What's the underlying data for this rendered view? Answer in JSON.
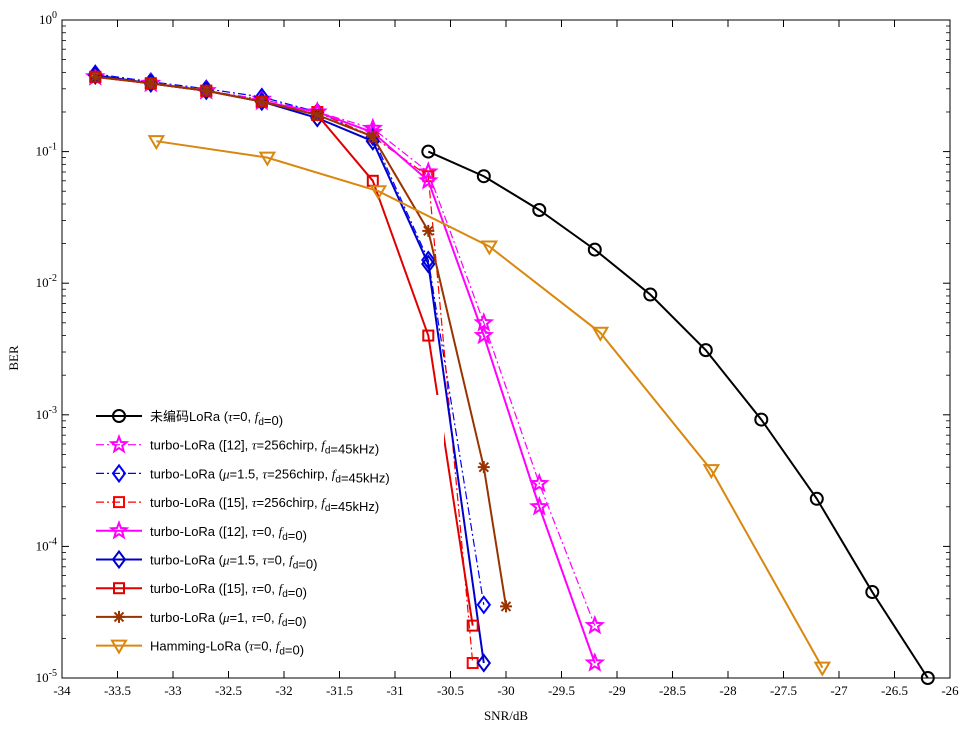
{
  "chart_data": {
    "type": "line",
    "title": "",
    "xlabel": "SNR/dB",
    "ylabel": "BER",
    "xlim": [
      -34,
      -26
    ],
    "ylim": [
      1e-05,
      1
    ],
    "yscale": "log",
    "grid": false,
    "legend_position": "bottom-left",
    "x_tick_labels": [
      "-34",
      "-33.5",
      "-33",
      "-32.5",
      "-32",
      "-31.5",
      "-31",
      "-30.5",
      "-30",
      "-29.5",
      "-29",
      "-28.5",
      "-28",
      "-27.5",
      "-27",
      "-26.5",
      "-26"
    ],
    "y_tick_labels": [
      {
        "base": "10",
        "exp": "0"
      },
      {
        "base": "10",
        "exp": "-1"
      },
      {
        "base": "10",
        "exp": "-2"
      },
      {
        "base": "10",
        "exp": "-3"
      },
      {
        "base": "10",
        "exp": "-4"
      },
      {
        "base": "10",
        "exp": "-5"
      }
    ],
    "series": [
      {
        "name": "未编码LoRa (τ=0, fd=0)",
        "legend_parts": [
          {
            "t": "未编码LoRa ("
          },
          {
            "t": "τ",
            "i": true
          },
          {
            "t": "=0, "
          },
          {
            "t": "f",
            "i": true
          },
          {
            "t": "d",
            "sub": true
          },
          {
            "t": "=0)"
          }
        ],
        "color": "#000000",
        "marker": "circle",
        "line": "solid",
        "x": [
          -30.7,
          -30.2,
          -29.7,
          -29.2,
          -28.7,
          -28.2,
          -27.7,
          -27.2,
          -26.7,
          -26.2
        ],
        "y": [
          0.1,
          0.065,
          0.036,
          0.018,
          0.0082,
          0.0031,
          0.00092,
          0.00023,
          4.5e-05,
          1e-05
        ]
      },
      {
        "name": "turbo-LoRa ([12], τ=256chirp, fd=45kHz)",
        "legend_parts": [
          {
            "t": "turbo-LoRa  ([12], "
          },
          {
            "t": "τ",
            "i": true
          },
          {
            "t": "=256chirp, "
          },
          {
            "t": "f",
            "i": true
          },
          {
            "t": "d",
            "sub": true
          },
          {
            "t": "=45kHz)"
          }
        ],
        "color": "#ff00ff",
        "marker": "star",
        "line": "dashdot",
        "x": [
          -33.7,
          -33.2,
          -32.7,
          -32.2,
          -31.7,
          -31.2,
          -30.7,
          -30.2,
          -29.7,
          -29.2
        ],
        "y": [
          0.37,
          0.33,
          0.29,
          0.25,
          0.2,
          0.15,
          0.07,
          0.005,
          0.0003,
          2.5e-05
        ]
      },
      {
        "name": "turbo-LoRa (μ=1.5, τ=256chirp, fd=45kHz)",
        "legend_parts": [
          {
            "t": "turbo-LoRa  ("
          },
          {
            "t": "μ",
            "i": true
          },
          {
            "t": "=1.5, "
          },
          {
            "t": "τ",
            "i": true
          },
          {
            "t": "=256chirp, "
          },
          {
            "t": "f",
            "i": true
          },
          {
            "t": "d",
            "sub": true
          },
          {
            "t": "=45kHz)"
          }
        ],
        "color": "#0000ff",
        "marker": "diamond",
        "line": "dashdot",
        "x": [
          -33.7,
          -33.2,
          -32.7,
          -32.2,
          -31.7,
          -31.2,
          -30.7,
          -30.2
        ],
        "y": [
          0.39,
          0.34,
          0.3,
          0.26,
          0.2,
          0.13,
          0.015,
          3.6e-05
        ]
      },
      {
        "name": "turbo-LoRa ([15], τ=256chirp, fd=45kHz)",
        "legend_parts": [
          {
            "t": "turbo-LoRa  ([15], "
          },
          {
            "t": "τ",
            "i": true
          },
          {
            "t": "=256chirp, "
          },
          {
            "t": "f",
            "i": true
          },
          {
            "t": "d",
            "sub": true
          },
          {
            "t": "=45kHz)"
          }
        ],
        "color": "#ff0000",
        "marker": "square",
        "line": "dashdot",
        "x": [
          -33.7,
          -33.2,
          -32.7,
          -32.2,
          -31.7,
          -31.2,
          -30.7,
          -30.3
        ],
        "y": [
          0.37,
          0.33,
          0.29,
          0.24,
          0.2,
          0.13,
          0.065,
          1.3e-05
        ]
      },
      {
        "name": "turbo-LoRa ([12], τ=0, fd=0)",
        "legend_parts": [
          {
            "t": "turbo-LoRa  ([12], "
          },
          {
            "t": "τ",
            "i": true
          },
          {
            "t": "=0, "
          },
          {
            "t": "f",
            "i": true
          },
          {
            "t": "d",
            "sub": true
          },
          {
            "t": "=0)"
          }
        ],
        "color": "#ff00ff",
        "marker": "star",
        "line": "solid",
        "x": [
          -33.7,
          -33.2,
          -32.7,
          -32.2,
          -31.7,
          -31.2,
          -30.7,
          -30.2,
          -29.7,
          -29.2
        ],
        "y": [
          0.37,
          0.33,
          0.29,
          0.24,
          0.2,
          0.14,
          0.06,
          0.004,
          0.0002,
          1.3e-05
        ]
      },
      {
        "name": "turbo-LoRa (μ=1.5, τ=0, fd=0)",
        "legend_parts": [
          {
            "t": "turbo-LoRa  ("
          },
          {
            "t": "μ",
            "i": true
          },
          {
            "t": "=1.5, "
          },
          {
            "t": "τ",
            "i": true
          },
          {
            "t": "=0, "
          },
          {
            "t": "f",
            "i": true
          },
          {
            "t": "d",
            "sub": true
          },
          {
            "t": "=0)"
          }
        ],
        "color": "#0000cc",
        "marker": "diamond",
        "line": "solid",
        "x": [
          -33.7,
          -33.2,
          -32.7,
          -32.2,
          -31.7,
          -31.2,
          -30.7,
          -30.2
        ],
        "y": [
          0.38,
          0.33,
          0.29,
          0.24,
          0.18,
          0.12,
          0.014,
          1.3e-05
        ]
      },
      {
        "name": "turbo-LoRa ([15], τ=0, fd=0)",
        "legend_parts": [
          {
            "t": "turbo-LoRa  ([15], "
          },
          {
            "t": "τ",
            "i": true
          },
          {
            "t": "=0, "
          },
          {
            "t": "f",
            "i": true
          },
          {
            "t": "d",
            "sub": true
          },
          {
            "t": "=0)"
          }
        ],
        "color": "#e00000",
        "marker": "square",
        "line": "solid",
        "x": [
          -33.7,
          -33.2,
          -32.7,
          -32.2,
          -31.7,
          -31.2,
          -30.7,
          -30.3
        ],
        "y": [
          0.37,
          0.33,
          0.29,
          0.24,
          0.19,
          0.06,
          0.004,
          2.5e-05
        ]
      },
      {
        "name": "turbo-LoRa (μ=1, τ=0, fd=0)",
        "legend_parts": [
          {
            "t": "turbo-LoRa  ("
          },
          {
            "t": "μ",
            "i": true
          },
          {
            "t": "=1, "
          },
          {
            "t": "τ",
            "i": true
          },
          {
            "t": "=0, "
          },
          {
            "t": "f",
            "i": true
          },
          {
            "t": "d",
            "sub": true
          },
          {
            "t": "=0)"
          }
        ],
        "color": "#993300",
        "marker": "asterisk",
        "line": "solid",
        "x": [
          -33.7,
          -33.2,
          -32.7,
          -32.2,
          -31.7,
          -31.2,
          -30.7,
          -30.2,
          -30.0
        ],
        "y": [
          0.37,
          0.33,
          0.29,
          0.24,
          0.19,
          0.13,
          0.025,
          0.0004,
          3.5e-05
        ]
      },
      {
        "name": "Hamming-LoRa (τ=0, fd=0)",
        "legend_parts": [
          {
            "t": "Hamming-LoRa  ("
          },
          {
            "t": "τ",
            "i": true
          },
          {
            "t": "=0, "
          },
          {
            "t": "f",
            "i": true
          },
          {
            "t": "d",
            "sub": true
          },
          {
            "t": "=0)"
          }
        ],
        "color": "#d9870f",
        "marker": "triangle-down",
        "line": "solid",
        "x": [
          -33.15,
          -32.15,
          -31.15,
          -30.15,
          -29.15,
          -28.15,
          -27.15
        ],
        "y": [
          0.12,
          0.09,
          0.05,
          0.019,
          0.0042,
          0.00038,
          1.2e-05
        ]
      }
    ]
  }
}
